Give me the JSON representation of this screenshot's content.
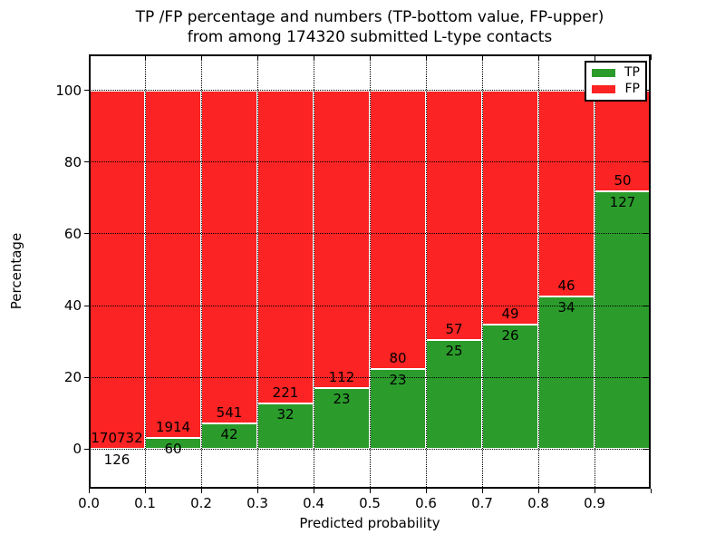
{
  "figure": {
    "title_line1": "TP /FP percentage and numbers (TP-bottom value, FP-upper)",
    "title_line2": "from among 174320 submitted L-type contacts"
  },
  "chart_data": {
    "type": "bar",
    "subtype": "stacked-percentage",
    "title": "TP /FP percentage and numbers (TP-bottom value, FP-upper) from among 174320 submitted L-type contacts",
    "xlabel": "Predicted probability",
    "ylabel": "Percentage",
    "total_submitted": 174320,
    "xlim": [
      0.0,
      1.0
    ],
    "ylim": [
      -11,
      110
    ],
    "bin_width": 0.1,
    "x_tick_labels": [
      "0.0",
      "0.1",
      "0.2",
      "0.3",
      "0.4",
      "0.5",
      "0.6",
      "0.7",
      "0.8",
      "0.9"
    ],
    "y_tick_values": [
      0,
      20,
      40,
      60,
      80,
      100
    ],
    "categories": [
      "0.0-0.1",
      "0.1-0.2",
      "0.2-0.3",
      "0.3-0.4",
      "0.4-0.5",
      "0.5-0.6",
      "0.6-0.7",
      "0.7-0.8",
      "0.8-0.9",
      "0.9-1.0"
    ],
    "series": [
      {
        "name": "TP",
        "color": "#2b9c2b",
        "counts": [
          126,
          60,
          42,
          32,
          23,
          23,
          25,
          26,
          34,
          127
        ]
      },
      {
        "name": "FP",
        "color": "#fb2323",
        "counts": [
          170732,
          1914,
          541,
          221,
          112,
          80,
          57,
          49,
          46,
          50
        ]
      }
    ],
    "bars_sum_to": 100,
    "grid": "dotted black, on top of bars",
    "bar_edge_color": "#ffffff",
    "legend_position": "upper right"
  }
}
